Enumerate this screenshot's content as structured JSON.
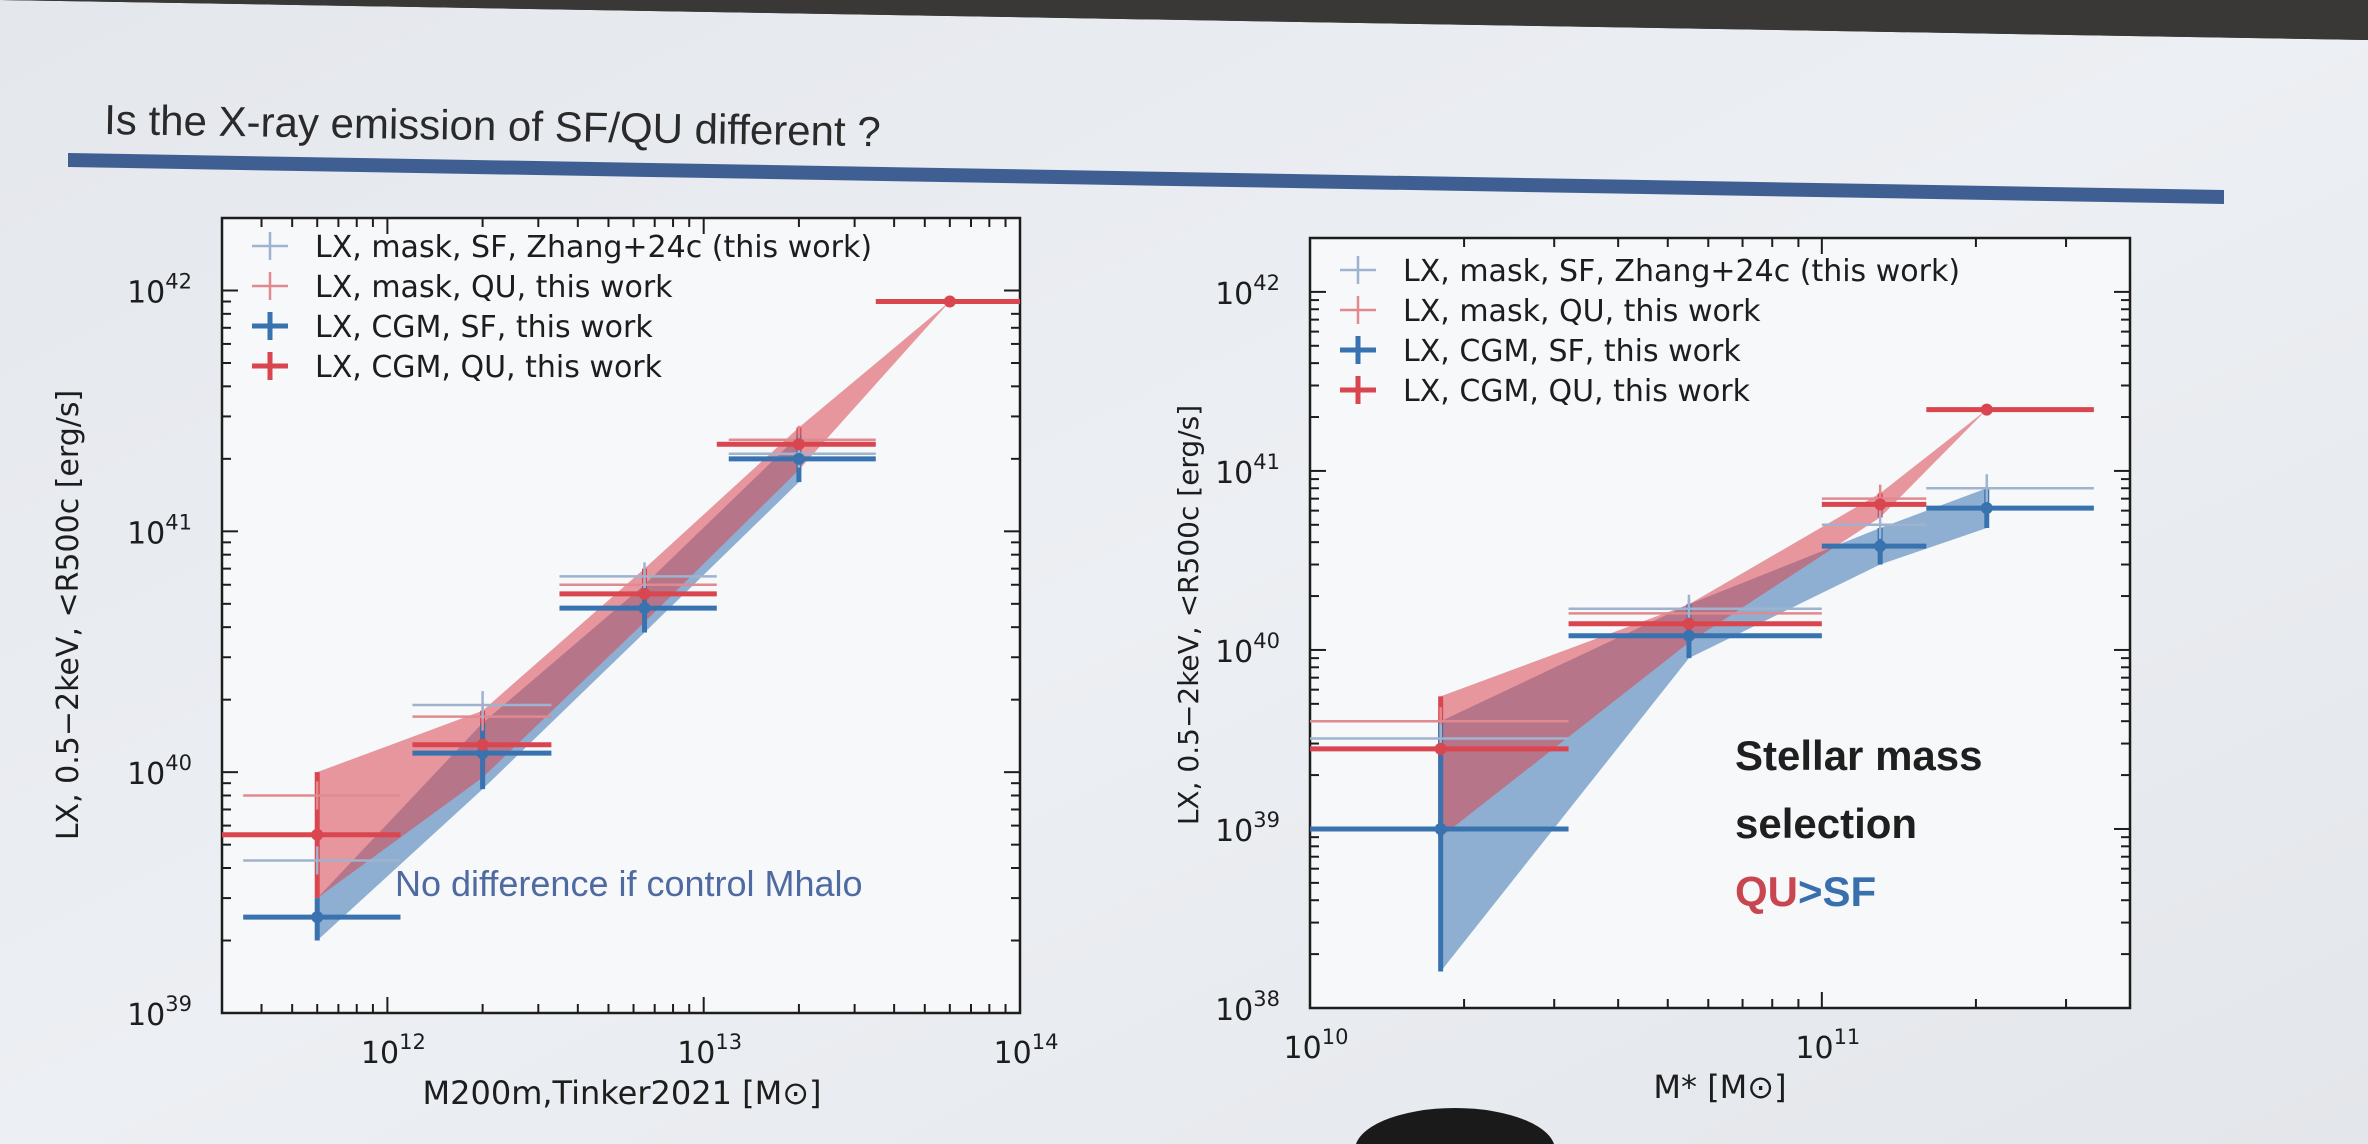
{
  "slide": {
    "title": "Is the X-ray emission of SF/QU different ?",
    "colors": {
      "background": "#e6e9ee",
      "title_bar": "#3f5f93",
      "qu": "#d9464f",
      "sf": "#3873b0",
      "qu_light": "#e08a90",
      "sf_light": "#9fb3cf"
    }
  },
  "chart_data": [
    {
      "type": "scatter",
      "log_x": true,
      "log_y": true,
      "xlim": [
        300000000000.0,
        100000000000000.0
      ],
      "ylim": [
        1e+39,
        2e+42
      ],
      "xlabel": "M200m,Tinker2021 [M⊙]",
      "ylabel": "LX, 0.5−2keV, <R500c [erg/s]",
      "x_ticks": [
        "10^12",
        "10^13",
        "10^14"
      ],
      "y_ticks": [
        "10^39",
        "10^40",
        "10^41",
        "10^42"
      ],
      "annotation": "No difference if control Mhalo",
      "legend_position": "top-left",
      "legend": [
        {
          "label": "LX, mask, SF, Zhang+24c (this work)",
          "color": "#9fb3cf"
        },
        {
          "label": "LX, mask, QU, this work",
          "color": "#e08a90"
        },
        {
          "label": "LX, CGM, SF, this work",
          "color": "#3873b0"
        },
        {
          "label": "LX, CGM, QU, this work",
          "color": "#d9464f"
        }
      ],
      "series": [
        {
          "name": "LX, CGM, QU, this work",
          "x": [
            600000000000.0,
            2000000000000.0,
            6500000000000.0,
            20000000000000.0,
            60000000000000.0
          ],
          "y": [
            5.5e+39,
            1.3e+40,
            5.5e+40,
            2.3e+41,
            9e+41
          ],
          "xerr_low": [
            300000000000.0,
            1200000000000.0,
            3500000000000.0,
            11000000000000.0,
            35000000000000.0
          ],
          "xerr_high": [
            1100000000000.0,
            3300000000000.0,
            11000000000000.0,
            35000000000000.0,
            100000000000000.0
          ],
          "yerr_low": [
            3e+39,
            9.5e+39,
            4.2e+40,
            1.8e+41,
            9e+41
          ],
          "yerr_high": [
            1e+40,
            1.8e+40,
            7e+40,
            2.7e+41,
            9e+41
          ]
        },
        {
          "name": "LX, CGM, SF, this work",
          "x": [
            600000000000.0,
            2000000000000.0,
            6500000000000.0,
            20000000000000.0
          ],
          "y": [
            2.5e+39,
            1.2e+40,
            4.8e+40,
            2e+41
          ],
          "xerr_low": [
            350000000000.0,
            1200000000000.0,
            3500000000000.0,
            12000000000000.0
          ],
          "xerr_high": [
            1100000000000.0,
            3300000000000.0,
            11000000000000.0,
            35000000000000.0
          ],
          "yerr_low": [
            2e+39,
            8.5e+39,
            3.8e+40,
            1.6e+41
          ],
          "yerr_high": [
            3e+39,
            1.6e+40,
            6e+40,
            2.5e+41
          ]
        },
        {
          "name": "LX, mask, QU, this work",
          "x": [
            600000000000.0,
            2000000000000.0,
            6500000000000.0,
            20000000000000.0
          ],
          "y": [
            8e+39,
            1.7e+40,
            6e+40,
            2.4e+41
          ],
          "xerr_low": [
            350000000000.0,
            1200000000000.0,
            3500000000000.0,
            12000000000000.0
          ],
          "xerr_high": [
            1100000000000.0,
            3300000000000.0,
            11000000000000.0,
            35000000000000.0
          ]
        },
        {
          "name": "LX, mask, SF, Zhang+24c (this work)",
          "x": [
            600000000000.0,
            2000000000000.0,
            6500000000000.0,
            20000000000000.0
          ],
          "y": [
            4.3e+39,
            1.9e+40,
            6.5e+40,
            2.1e+41
          ],
          "xerr_low": [
            350000000000.0,
            1200000000000.0,
            3500000000000.0,
            12000000000000.0
          ],
          "xerr_high": [
            1100000000000.0,
            3300000000000.0,
            11000000000000.0,
            35000000000000.0
          ]
        }
      ]
    },
    {
      "type": "scatter",
      "log_x": true,
      "log_y": true,
      "xlim": [
        10000000000.0,
        400000000000.0
      ],
      "ylim": [
        1e+38,
        2e+42
      ],
      "xlabel": "M* [M⊙]",
      "ylabel": "LX, 0.5−2keV, <R500c [erg/s]",
      "x_ticks": [
        "10^10",
        "10^11"
      ],
      "y_ticks": [
        "10^38",
        "10^39",
        "10^40",
        "10^41",
        "10^42"
      ],
      "annotation": [
        "Stellar mass",
        "selection",
        "QU",
        ">SF"
      ],
      "legend_position": "top-left",
      "legend": [
        {
          "label": "LX, mask, SF, Zhang+24c (this work)",
          "color": "#9fb3cf"
        },
        {
          "label": "LX, mask, QU, this work",
          "color": "#e08a90"
        },
        {
          "label": "LX, CGM, SF, this work",
          "color": "#3873b0"
        },
        {
          "label": "LX, CGM, QU, this work",
          "color": "#d9464f"
        }
      ],
      "series": [
        {
          "name": "LX, CGM, QU, this work",
          "x": [
            18000000000.0,
            55000000000.0,
            130000000000.0,
            210000000000.0
          ],
          "y": [
            2.8e+39,
            1.4e+40,
            6.5e+40,
            2.2e+41
          ],
          "xerr_low": [
            10000000000.0,
            32000000000.0,
            100000000000.0,
            160000000000.0
          ],
          "xerr_high": [
            32000000000.0,
            100000000000.0,
            160000000000.0,
            340000000000.0
          ],
          "yerr_low": [
            9e+38,
            1.1e+40,
            5.5e+40,
            2.2e+41
          ],
          "yerr_high": [
            5.5e+39,
            1.8e+40,
            7.5e+40,
            2.2e+41
          ]
        },
        {
          "name": "LX, CGM, SF, this work",
          "x": [
            18000000000.0,
            55000000000.0,
            130000000000.0,
            210000000000.0
          ],
          "y": [
            1e+39,
            1.2e+40,
            3.8e+40,
            6.2e+40
          ],
          "xerr_low": [
            10000000000.0,
            32000000000.0,
            100000000000.0,
            160000000000.0
          ],
          "xerr_high": [
            32000000000.0,
            100000000000.0,
            160000000000.0,
            340000000000.0
          ],
          "yerr_low": [
            1.6e+38,
            9e+39,
            3e+40,
            4.8e+40
          ],
          "yerr_high": [
            4e+39,
            1.8e+40,
            4.8e+40,
            8e+40
          ]
        },
        {
          "name": "LX, mask, QU, this work",
          "x": [
            18000000000.0,
            55000000000.0,
            130000000000.0
          ],
          "y": [
            4e+39,
            1.6e+40,
            7e+40
          ],
          "xerr_low": [
            10000000000.0,
            32000000000.0,
            100000000000.0
          ],
          "xerr_high": [
            32000000000.0,
            100000000000.0,
            160000000000.0
          ]
        },
        {
          "name": "LX, mask, SF, Zhang+24c (this work)",
          "x": [
            18000000000.0,
            55000000000.0,
            130000000000.0,
            210000000000.0
          ],
          "y": [
            3.2e+39,
            1.7e+40,
            5e+40,
            8e+40
          ],
          "xerr_low": [
            10000000000.0,
            32000000000.0,
            100000000000.0,
            160000000000.0
          ],
          "xerr_high": [
            32000000000.0,
            100000000000.0,
            160000000000.0,
            340000000000.0
          ]
        }
      ]
    }
  ]
}
